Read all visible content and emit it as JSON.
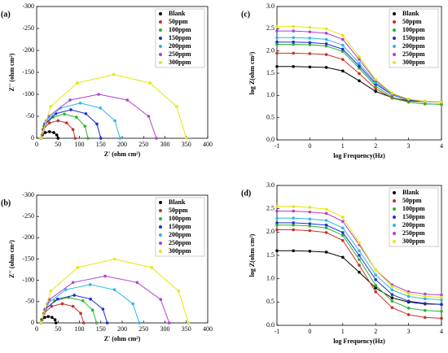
{
  "chart_data": [
    {
      "type": "line",
      "panel_label": "(a)",
      "xlabel": "Z' (ohm cm²)",
      "ylabel": "Z'' (ohm cm²)",
      "xlim": [
        0,
        400
      ],
      "xticks": [
        0,
        50,
        100,
        150,
        200,
        250,
        300,
        350,
        400
      ],
      "ylim": [
        0,
        -300
      ],
      "yticks": [
        0,
        -50,
        -100,
        -150,
        -200,
        -250,
        -300
      ],
      "series": [
        {
          "name": "Blank",
          "color": "#000000",
          "x": [
            10,
            13,
            20,
            30,
            40,
            47,
            50
          ],
          "values": [
            0,
            -7.5,
            -13,
            -15,
            -13,
            -7.5,
            0
          ]
        },
        {
          "name": "50ppm",
          "color": "#c8302a",
          "x": [
            10,
            15,
            30,
            50,
            70,
            85,
            90
          ],
          "values": [
            0,
            -20,
            -35,
            -40,
            -35,
            -20,
            0
          ]
        },
        {
          "name": "100ppm",
          "color": "#2db32d",
          "x": [
            10,
            17,
            38,
            65,
            93,
            113,
            120
          ],
          "values": [
            0,
            -27.5,
            -48,
            -55,
            -48,
            -27.5,
            0
          ]
        },
        {
          "name": "150ppm",
          "color": "#1f2fd0",
          "x": [
            10,
            19,
            45,
            80,
            115,
            141,
            150
          ],
          "values": [
            0,
            -32.5,
            -56,
            -65,
            -56,
            -32.5,
            0
          ]
        },
        {
          "name": "200ppm",
          "color": "#2ab8e8",
          "x": [
            10,
            22,
            56,
            102,
            149,
            183,
            195
          ],
          "values": [
            0,
            -40,
            -69,
            -80,
            -69,
            -40,
            0
          ]
        },
        {
          "name": "250ppm",
          "color": "#b23fd0",
          "x": [
            10,
            28,
            78,
            145,
            212,
            262,
            280
          ],
          "values": [
            0,
            -50,
            -87,
            -100,
            -87,
            -50,
            0
          ]
        },
        {
          "name": "300ppm",
          "color": "#e6e60a",
          "x": [
            10,
            33,
            95,
            180,
            265,
            327,
            350
          ],
          "values": [
            0,
            -72.5,
            -126,
            -145,
            -126,
            -72.5,
            0
          ]
        }
      ]
    },
    {
      "type": "line",
      "panel_label": "(b)",
      "xlabel": "Z' (ohm cm²)",
      "ylabel": "Z'' (ohm cm²)",
      "xlim": [
        0,
        400
      ],
      "xticks": [
        0,
        50,
        100,
        150,
        200,
        250,
        300,
        350,
        400
      ],
      "ylim": [
        0,
        -300
      ],
      "yticks": [
        0,
        -50,
        -100,
        -150,
        -200,
        -250,
        -300
      ],
      "series": [
        {
          "name": "Blank",
          "color": "#000000",
          "x": [
            10,
            12,
            19,
            27,
            36,
            43,
            45
          ],
          "values": [
            0,
            -7.5,
            -13,
            -15,
            -13,
            -7.5,
            0
          ]
        },
        {
          "name": "50ppm",
          "color": "#c8302a",
          "x": [
            10,
            17,
            35,
            60,
            85,
            103,
            110
          ],
          "values": [
            0,
            -22.5,
            -39,
            -45,
            -39,
            -22.5,
            0
          ]
        },
        {
          "name": "100ppm",
          "color": "#2db32d",
          "x": [
            10,
            19,
            42,
            75,
            108,
            131,
            140
          ],
          "values": [
            0,
            -30,
            -52,
            -60,
            -52,
            -30,
            0
          ]
        },
        {
          "name": "150ppm",
          "color": "#1f2fd0",
          "x": [
            10,
            20,
            49,
            88,
            126,
            155,
            165
          ],
          "values": [
            0,
            -32.5,
            -56,
            -65,
            -56,
            -32.5,
            0
          ]
        },
        {
          "name": "200ppm",
          "color": "#2ab8e8",
          "x": [
            10,
            25,
            68,
            125,
            182,
            225,
            240
          ],
          "values": [
            0,
            -45,
            -78,
            -90,
            -78,
            -45,
            0
          ]
        },
        {
          "name": "250ppm",
          "color": "#b23fd0",
          "x": [
            10,
            30,
            85,
            160,
            235,
            290,
            310
          ],
          "values": [
            0,
            -55,
            -95,
            -110,
            -95,
            -55,
            0
          ]
        },
        {
          "name": "300ppm",
          "color": "#e6e60a",
          "x": [
            10,
            33,
            96,
            182,
            269,
            332,
            355
          ],
          "values": [
            0,
            -75,
            -130,
            -150,
            -130,
            -75,
            0
          ]
        }
      ]
    },
    {
      "type": "line",
      "panel_label": "(c)",
      "xlabel": "log Frequency(Hz)",
      "ylabel": "log Z(ohm cm²)",
      "xlim": [
        -1,
        4
      ],
      "xticks": [
        -1,
        0,
        1,
        2,
        3,
        4
      ],
      "ylim": [
        0,
        3
      ],
      "yticks": [
        {
          "value": 0,
          "label": "0.0"
        },
        0.5,
        {
          "value": 1,
          "label": "1.0"
        },
        1.5,
        {
          "value": 2,
          "label": "2.0"
        },
        2.5,
        {
          "value": 3,
          "label": "3.0"
        }
      ],
      "series": [
        {
          "name": "Blank",
          "color": "#000000",
          "x": [
            -1,
            -0.5,
            0,
            0.5,
            1,
            1.5,
            2,
            2.5,
            3,
            3.5,
            4
          ],
          "values": [
            1.65,
            1.65,
            1.64,
            1.63,
            1.55,
            1.33,
            1.09,
            0.95,
            0.88,
            0.86,
            0.85
          ]
        },
        {
          "name": "50ppm",
          "color": "#c8302a",
          "x": [
            -1,
            -0.5,
            0,
            0.5,
            1,
            1.5,
            2,
            2.5,
            3,
            3.5,
            4
          ],
          "values": [
            1.95,
            1.95,
            1.94,
            1.92,
            1.81,
            1.49,
            1.15,
            0.94,
            0.85,
            0.81,
            0.8
          ]
        },
        {
          "name": "100ppm",
          "color": "#2db32d",
          "x": [
            -1,
            -0.5,
            0,
            0.5,
            1,
            1.5,
            2,
            2.5,
            3,
            3.5,
            4
          ],
          "values": [
            2.15,
            2.15,
            2.14,
            2.11,
            1.99,
            1.61,
            1.21,
            0.96,
            0.85,
            0.81,
            0.8
          ]
        },
        {
          "name": "150ppm",
          "color": "#1f2fd0",
          "x": [
            -1,
            -0.5,
            0,
            0.5,
            1,
            1.5,
            2,
            2.5,
            3,
            3.5,
            4
          ],
          "values": [
            2.2,
            2.2,
            2.19,
            2.16,
            2.04,
            1.66,
            1.26,
            1.01,
            0.9,
            0.86,
            0.85
          ]
        },
        {
          "name": "200ppm",
          "color": "#2ab8e8",
          "x": [
            -1,
            -0.5,
            0,
            0.5,
            1,
            1.5,
            2,
            2.5,
            3,
            3.5,
            4
          ],
          "values": [
            2.3,
            2.3,
            2.29,
            2.26,
            2.13,
            1.72,
            1.29,
            1.02,
            0.91,
            0.86,
            0.85
          ]
        },
        {
          "name": "250ppm",
          "color": "#b23fd0",
          "x": [
            -1,
            -0.5,
            0,
            0.5,
            1,
            1.5,
            2,
            2.5,
            3,
            3.5,
            4
          ],
          "values": [
            2.45,
            2.45,
            2.43,
            2.4,
            2.26,
            1.81,
            1.33,
            1.04,
            0.91,
            0.87,
            0.85
          ]
        },
        {
          "name": "300ppm",
          "color": "#e6e60a",
          "x": [
            -1,
            -0.5,
            0,
            0.5,
            1,
            1.5,
            2,
            2.5,
            3,
            3.5,
            4
          ],
          "values": [
            2.55,
            2.55,
            2.53,
            2.5,
            2.35,
            1.87,
            1.36,
            1.05,
            0.92,
            0.87,
            0.85
          ]
        }
      ]
    },
    {
      "type": "line",
      "panel_label": "(d)",
      "xlabel": "log Frequency(Hz)",
      "ylabel": "log Z(ohm cm²)",
      "xlim": [
        -1,
        4
      ],
      "xticks": [
        -1,
        0,
        1,
        2,
        3,
        4
      ],
      "ylim": [
        0,
        3
      ],
      "yticks": [
        {
          "value": 0,
          "label": "0.0"
        },
        0.5,
        {
          "value": 1,
          "label": "1.0"
        },
        1.5,
        {
          "value": 2,
          "label": "2.0"
        },
        2.5,
        {
          "value": 3,
          "label": "3.0"
        }
      ],
      "series": [
        {
          "name": "Blank",
          "color": "#000000",
          "x": [
            -1,
            -0.5,
            0,
            0.5,
            1,
            1.5,
            2,
            2.5,
            3,
            3.5,
            4
          ],
          "values": [
            1.6,
            1.6,
            1.59,
            1.57,
            1.46,
            1.14,
            0.8,
            0.59,
            0.5,
            0.46,
            0.45
          ]
        },
        {
          "name": "50ppm",
          "color": "#c8302a",
          "x": [
            -1,
            -0.5,
            0,
            0.5,
            1,
            1.5,
            2,
            2.5,
            3,
            3.5,
            4
          ],
          "values": [
            2.05,
            2.05,
            2.03,
            1.99,
            1.82,
            1.29,
            0.72,
            0.38,
            0.23,
            0.17,
            0.15
          ]
        },
        {
          "name": "100ppm",
          "color": "#2db32d",
          "x": [
            -1,
            -0.5,
            0,
            0.5,
            1,
            1.5,
            2,
            2.5,
            3,
            3.5,
            4
          ],
          "values": [
            2.15,
            2.15,
            2.13,
            2.09,
            1.93,
            1.41,
            0.86,
            0.52,
            0.37,
            0.32,
            0.3
          ]
        },
        {
          "name": "150ppm",
          "color": "#1f2fd0",
          "x": [
            -1,
            -0.5,
            0,
            0.5,
            1,
            1.5,
            2,
            2.5,
            3,
            3.5,
            4
          ],
          "values": [
            2.2,
            2.2,
            2.18,
            2.15,
            1.99,
            1.5,
            0.98,
            0.66,
            0.52,
            0.47,
            0.45
          ]
        },
        {
          "name": "200ppm",
          "color": "#2ab8e8",
          "x": [
            -1,
            -0.5,
            0,
            0.5,
            1,
            1.5,
            2,
            2.5,
            3,
            3.5,
            4
          ],
          "values": [
            2.3,
            2.3,
            2.28,
            2.25,
            2.09,
            1.6,
            1.08,
            0.76,
            0.62,
            0.57,
            0.55
          ]
        },
        {
          "name": "250ppm",
          "color": "#b23fd0",
          "x": [
            -1,
            -0.5,
            0,
            0.5,
            1,
            1.5,
            2,
            2.5,
            3,
            3.5,
            4
          ],
          "values": [
            2.45,
            2.45,
            2.43,
            2.4,
            2.23,
            1.73,
            1.19,
            0.87,
            0.72,
            0.67,
            0.65
          ]
        },
        {
          "name": "300ppm",
          "color": "#e6e60a",
          "x": [
            -1,
            -0.5,
            0,
            0.5,
            1,
            1.5,
            2,
            2.5,
            3,
            3.5,
            4
          ],
          "values": [
            2.55,
            2.55,
            2.53,
            2.49,
            2.32,
            1.77,
            1.19,
            0.83,
            0.68,
            0.62,
            0.6
          ]
        }
      ]
    }
  ]
}
